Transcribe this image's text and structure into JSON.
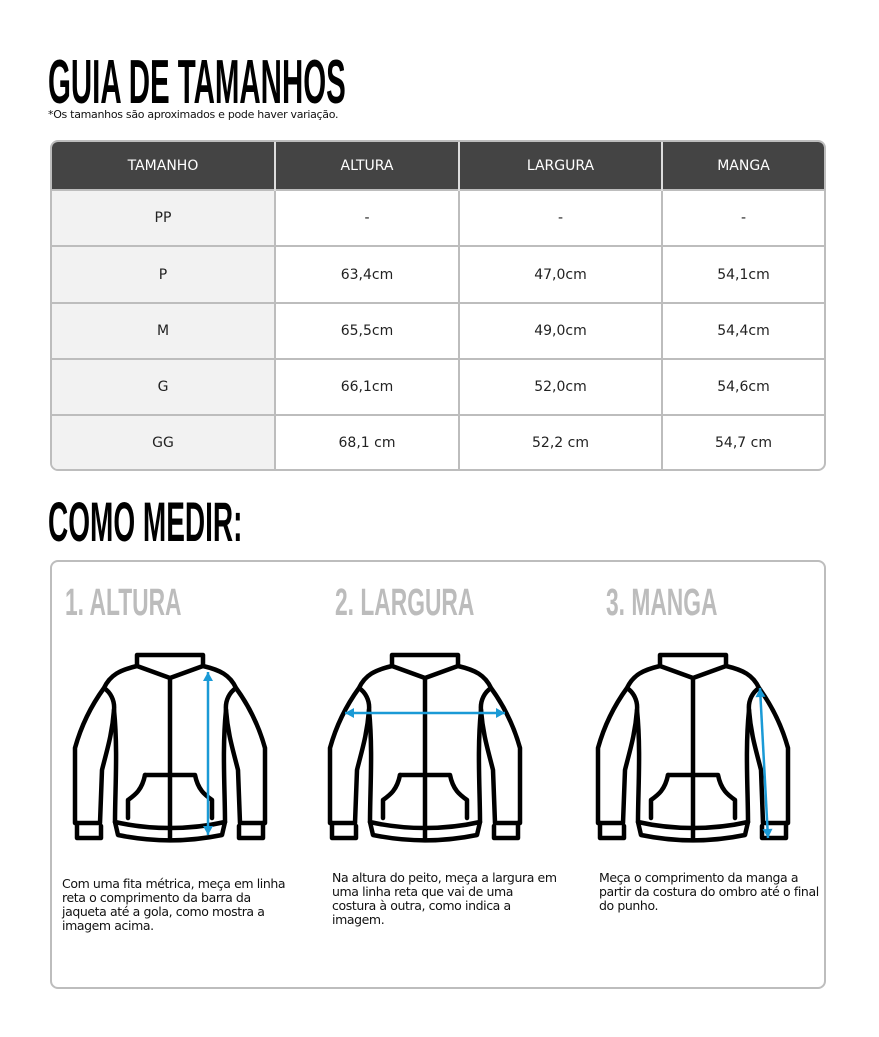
{
  "header": {
    "title": "GUIA DE TAMANHOS",
    "note": "*Os tamanhos são aproximados e pode haver variação."
  },
  "table": {
    "columns": [
      "TAMANHO",
      "ALTURA",
      "LARGURA",
      "MANGA"
    ],
    "rows": [
      [
        "PP",
        "-",
        "-",
        "-"
      ],
      [
        "P",
        "63,4cm",
        "47,0cm",
        "54,1cm"
      ],
      [
        "M",
        "65,5cm",
        "49,0cm",
        "54,4cm"
      ],
      [
        "G",
        "66,1cm",
        "52,0cm",
        "54,6cm"
      ],
      [
        "GG",
        "68,1 cm",
        "52,2 cm",
        "54,7 cm"
      ]
    ]
  },
  "how": {
    "title": "COMO MEDIR:",
    "steps": [
      {
        "label": "1. ALTURA",
        "text": "Com uma fita métrica, meça em linha reta o comprimento da barra da jaqueta até a gola, como mostra a imagem acima."
      },
      {
        "label": "2. LARGURA",
        "text": "Na altura do peito, meça a largura em uma linha reta que vai de uma costura à outra, como indica a imagem."
      },
      {
        "label": "3. MANGA",
        "text": "Meça o comprimento da manga a partir da costura do ombro até o final do punho."
      }
    ]
  },
  "colors": {
    "header_bg": "#444444",
    "arrow": "#1a9ad6",
    "label_gray": "#bcbcbc"
  },
  "icons": [
    "jacket-icon",
    "measure-arrow-icon"
  ]
}
